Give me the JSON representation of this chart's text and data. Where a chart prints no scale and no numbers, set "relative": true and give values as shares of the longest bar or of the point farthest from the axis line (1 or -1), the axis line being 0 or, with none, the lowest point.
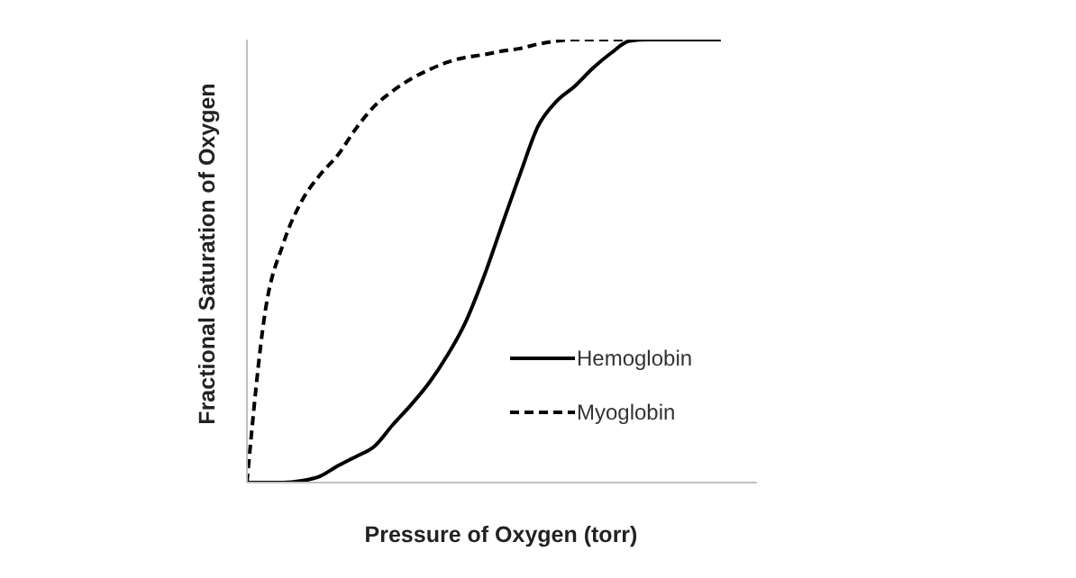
{
  "chart_data": {
    "type": "line",
    "relative": true,
    "xlabel": "Pressure of Oxygen (torr)",
    "ylabel": "Fractional Saturation of Oxygen",
    "legend": "right",
    "grid": false,
    "marker": "none",
    "categories": [
      null,
      null,
      null,
      null,
      null,
      null,
      null,
      null,
      null,
      null,
      null,
      null,
      null,
      null,
      null,
      null,
      null,
      null,
      null,
      null,
      null,
      null,
      null,
      null,
      null,
      null,
      null,
      null,
      null
    ],
    "series": [
      {
        "name": "Hemoglobin",
        "color": "#000000",
        "line_style": "solid",
        "values": [
          0,
          0,
          0,
          0.004,
          0.014,
          0.038,
          0.059,
          0.082,
          0.13,
          0.175,
          0.225,
          0.287,
          0.362,
          0.464,
          0.581,
          0.697,
          0.806,
          0.861,
          0.895,
          0.936,
          0.97,
          0.997,
          1,
          1,
          1,
          1,
          1,
          null,
          null
        ]
      },
      {
        "name": "Myoglobin",
        "color": "#000000",
        "line_style": "dashed",
        "values": [
          0,
          0.385,
          0.54,
          0.635,
          0.694,
          0.74,
          0.8,
          0.85,
          0.884,
          0.911,
          0.932,
          0.949,
          0.96,
          0.966,
          0.974,
          0.98,
          0.99,
          0.997,
          1,
          1,
          1,
          1,
          1,
          1,
          1,
          1,
          1,
          null,
          null
        ]
      }
    ]
  }
}
